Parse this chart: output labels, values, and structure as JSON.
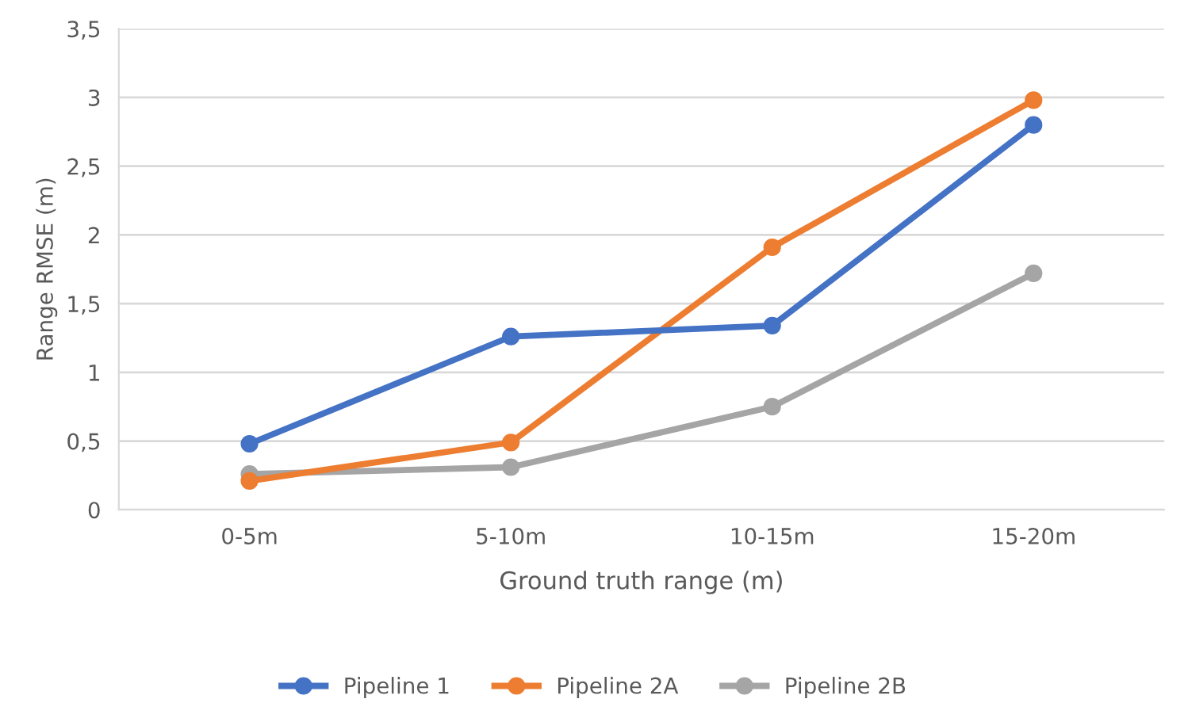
{
  "chart_data": {
    "type": "line",
    "xlabel": "Ground truth range (m)",
    "ylabel": "Range RMSE (m)",
    "categories": [
      "0-5m",
      "5-10m",
      "10-15m",
      "15-20m"
    ],
    "series": [
      {
        "name": "Pipeline 1",
        "color": "#4472c4",
        "values": [
          0.48,
          1.26,
          1.34,
          2.8
        ]
      },
      {
        "name": "Pipeline 2A",
        "color": "#ed7d31",
        "values": [
          0.21,
          0.49,
          1.91,
          2.98
        ]
      },
      {
        "name": "Pipeline 2B",
        "color": "#a5a5a5",
        "values": [
          0.26,
          0.31,
          0.75,
          1.72
        ]
      }
    ],
    "ylim": [
      0,
      3.5
    ],
    "yticks": [
      0,
      {
        "value": 0.5,
        "label": "0,5"
      },
      1,
      {
        "value": 1.5,
        "label": "1,5"
      },
      2,
      {
        "value": 2.5,
        "label": "2,5"
      },
      3,
      {
        "value": 3.5,
        "label": "3,5"
      }
    ],
    "grid": "y",
    "legend": "bottom",
    "marker": "circle",
    "line_style": "solid"
  }
}
